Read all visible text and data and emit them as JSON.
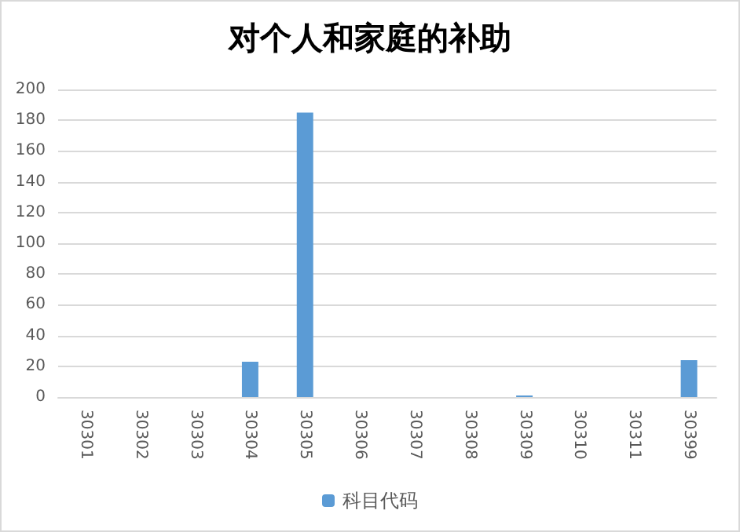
{
  "chart_data": {
    "type": "bar",
    "title": "对个人和家庭的补助",
    "categories": [
      "30301",
      "30302",
      "30303",
      "30304",
      "30305",
      "30306",
      "30307",
      "30308",
      "30309",
      "30310",
      "30311",
      "30399"
    ],
    "series": [
      {
        "name": "科目代码",
        "color": "#5b9bd5",
        "values": [
          0,
          0,
          0,
          23,
          185,
          0,
          0,
          0,
          1,
          0,
          0,
          24
        ]
      }
    ],
    "ylim": [
      0,
      200
    ],
    "yticks": [
      0,
      20,
      40,
      60,
      80,
      100,
      120,
      140,
      160,
      180,
      200
    ],
    "grid": "y",
    "legend": "bottom"
  }
}
